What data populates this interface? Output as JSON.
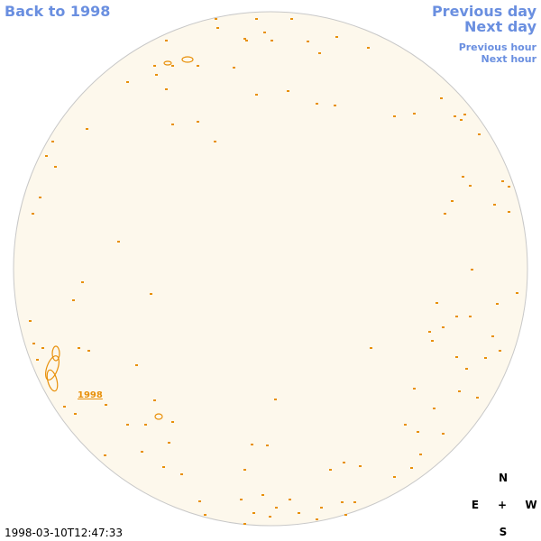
{
  "navigation": {
    "back": "Back to 1998",
    "previous_day": "Previous day",
    "next_day": "Next day",
    "previous_hour": "Previous hour",
    "next_hour": "Next hour"
  },
  "timestamp": "1998-03-10T12:47:33",
  "compass": {
    "north": "N",
    "east": "E",
    "center": "+",
    "west": "W",
    "south": "S"
  },
  "regions": [
    {
      "label": "1998"
    }
  ]
}
